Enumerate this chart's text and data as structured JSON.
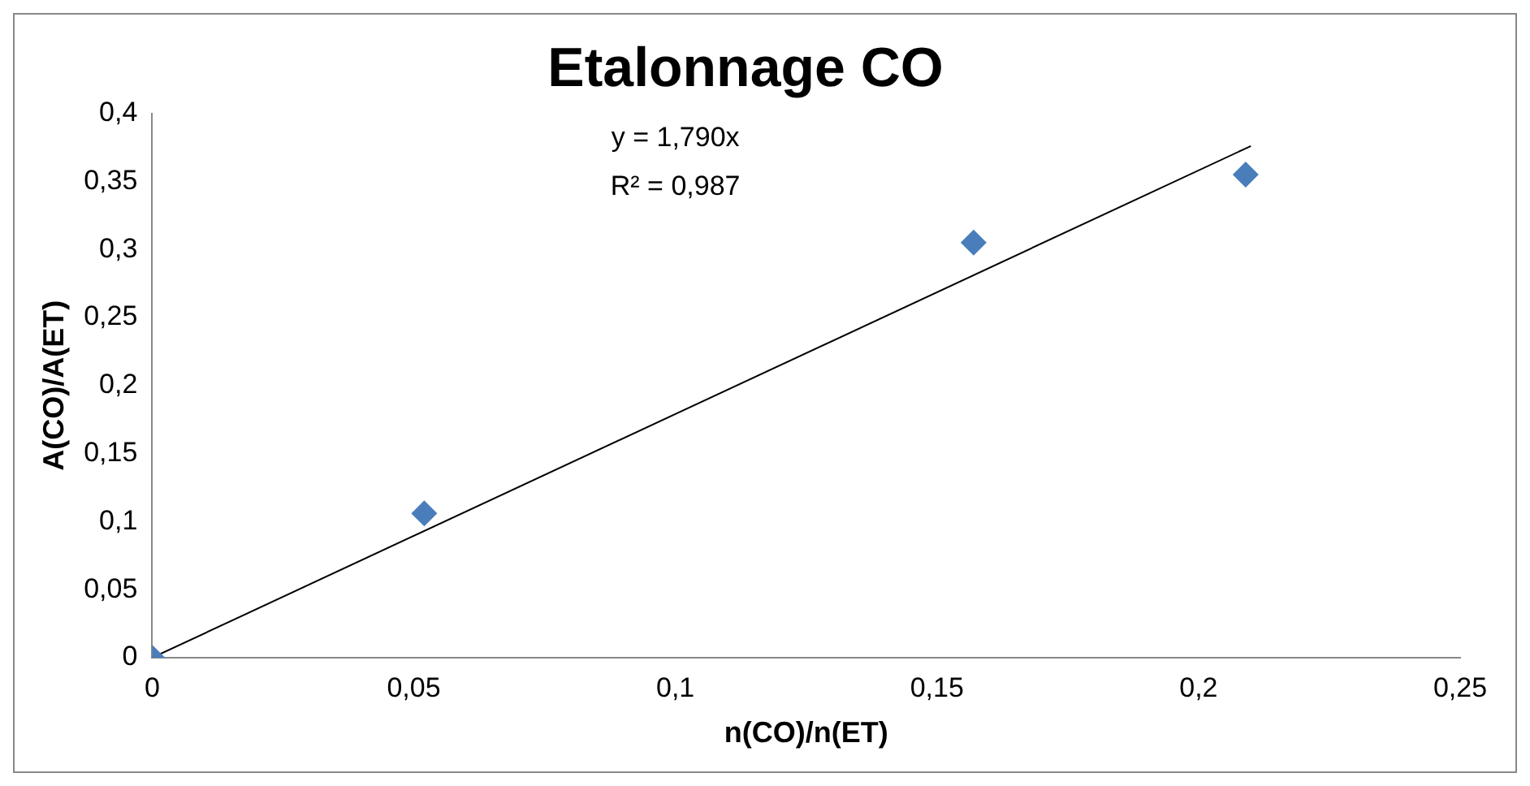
{
  "chart_data": {
    "type": "scatter",
    "title": "Etalonnage CO",
    "xlabel": "n(CO)/n(ET)",
    "ylabel": "A(CO)/A(ET)",
    "annotations": [
      "y = 1,790x",
      "R² = 0,987"
    ],
    "marker": "diamond",
    "series": [
      {
        "color": "#4a7ebb",
        "x": [
          0,
          0.052,
          0.157,
          0.209
        ],
        "values": [
          0,
          0.106,
          0.305,
          0.355
        ]
      },
      {
        "type": "line",
        "marker": "none",
        "color": "#000000",
        "x": [
          0,
          0.21
        ],
        "values": [
          0,
          0.376
        ]
      }
    ],
    "xlim": [
      0,
      0.25
    ],
    "ylim": [
      0,
      0.4
    ],
    "xticks": [
      0,
      {
        "value": 0.05,
        "label": "0,05"
      },
      {
        "value": 0.1,
        "label": "0,1"
      },
      {
        "value": 0.15,
        "label": "0,15"
      },
      {
        "value": 0.2,
        "label": "0,2"
      },
      {
        "value": 0.25,
        "label": "0,25"
      }
    ],
    "yticks": [
      0,
      {
        "value": 0.05,
        "label": "0,05"
      },
      {
        "value": 0.1,
        "label": "0,1"
      },
      {
        "value": 0.15,
        "label": "0,15"
      },
      {
        "value": 0.2,
        "label": "0,2"
      },
      {
        "value": 0.25,
        "label": "0,25"
      },
      {
        "value": 0.3,
        "label": "0,3"
      },
      {
        "value": 0.35,
        "label": "0,35"
      },
      {
        "value": 0.4,
        "label": "0,4"
      }
    ]
  }
}
